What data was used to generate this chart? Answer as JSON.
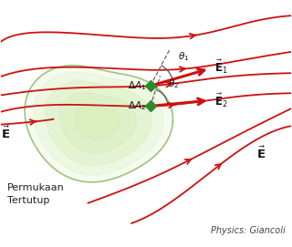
{
  "bg_color": "#ffffff",
  "blob_color": "#c8e6a0",
  "blob_edge_color": "#88b860",
  "area_vec_color": "#2d8a2d",
  "arrow_color": "#cc1111",
  "text_color": "#222222",
  "label_color": "#000000",
  "title_text": "Physics: Giancoli",
  "surface_label": "Permukaan\nTertutup",
  "figsize": [
    3.2,
    2.71
  ],
  "dpi": 100
}
